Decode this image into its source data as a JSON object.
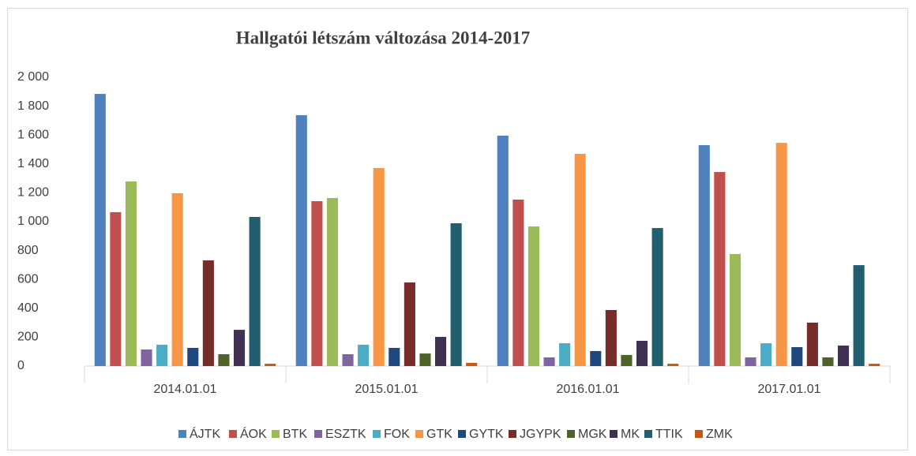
{
  "chart_data": {
    "type": "bar",
    "title": "Hallgatói létszám változása 2014-2017",
    "categories": [
      "2014.01.01",
      "2015.01.01",
      "2016.01.01",
      "2017.01.01"
    ],
    "series": [
      {
        "name": "ÁJTK",
        "color": "#4f81bd",
        "values": [
          1885,
          1738,
          1596,
          1530
        ]
      },
      {
        "name": "ÁOK",
        "color": "#c0504d",
        "values": [
          1066,
          1142,
          1153,
          1344
        ]
      },
      {
        "name": "BTK",
        "color": "#9bbb59",
        "values": [
          1279,
          1164,
          967,
          776
        ]
      },
      {
        "name": "ESZTK",
        "color": "#8064a2",
        "values": [
          115,
          82,
          60,
          60
        ]
      },
      {
        "name": "FOK",
        "color": "#4bacc6",
        "values": [
          148,
          148,
          158,
          158
        ]
      },
      {
        "name": "GTK",
        "color": "#f79646",
        "values": [
          1197,
          1372,
          1470,
          1546
        ]
      },
      {
        "name": "GYTK",
        "color": "#1f497d",
        "values": [
          126,
          126,
          104,
          131
        ]
      },
      {
        "name": "JGYPK",
        "color": "#772c2a",
        "values": [
          732,
          579,
          388,
          301
        ]
      },
      {
        "name": "MGK",
        "color": "#4f6228",
        "values": [
          82,
          87,
          77,
          60
        ]
      },
      {
        "name": "MK",
        "color": "#403152",
        "values": [
          251,
          202,
          175,
          142
        ]
      },
      {
        "name": "TTIK",
        "color": "#215f6e",
        "values": [
          1033,
          989,
          956,
          699
        ]
      },
      {
        "name": "ZMK",
        "color": "#c65911",
        "values": [
          16,
          22,
          16,
          16
        ]
      }
    ],
    "ylim": [
      0,
      2000
    ],
    "yticks": [
      0,
      200,
      400,
      600,
      800,
      {
        "value": 1000,
        "label": "1 000"
      },
      {
        "value": 1200,
        "label": "1 200"
      },
      {
        "value": 1400,
        "label": "1 400"
      },
      {
        "value": 1600,
        "label": "1 600"
      },
      {
        "value": 1800,
        "label": "1 800"
      },
      {
        "value": 2000,
        "label": "2 000"
      }
    ],
    "grid": false,
    "legend": "bottom"
  }
}
